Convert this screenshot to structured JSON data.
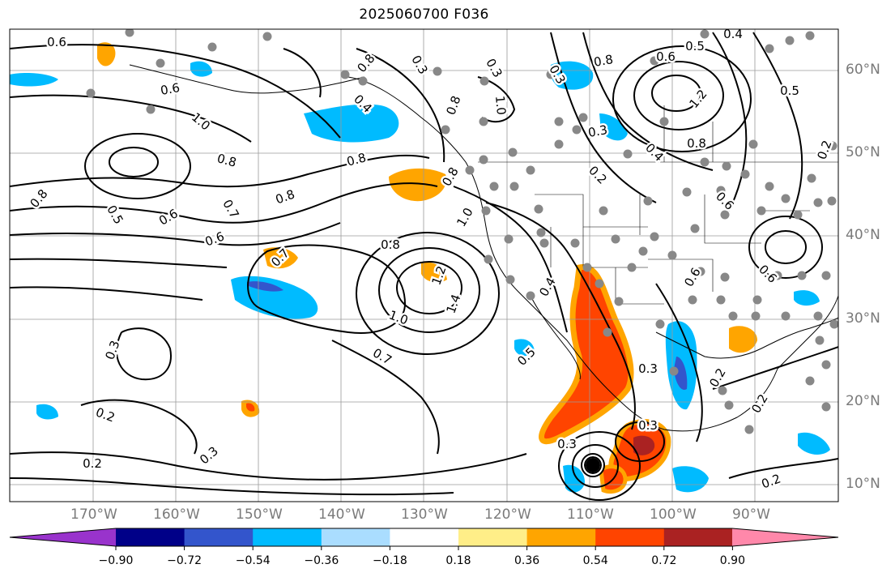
{
  "title": "2025060700 F036",
  "map": {
    "lat_labels": [
      "60°N",
      "50°N",
      "40°N",
      "30°N",
      "20°N",
      "10°N"
    ],
    "lon_labels": [
      "170°W",
      "160°W",
      "150°W",
      "140°W",
      "130°W",
      "120°W",
      "110°W",
      "100°W",
      "90°W"
    ],
    "contour_labels": [
      "0.6",
      "0.8",
      "0.6",
      "1.0",
      "0.8",
      "0.5",
      "0.6",
      "0.7",
      "0.8",
      "0.6",
      "0.7",
      "0.8",
      "0.8",
      "0.4",
      "0.3",
      "0.3",
      "0.8",
      "1.0",
      "0.8",
      "0.3",
      "0.8",
      "0.6",
      "0.5",
      "0.4",
      "0.5",
      "1.2",
      "0.3",
      "0.4",
      "0.2",
      "0.8",
      "0.2",
      "0.6",
      "1.0",
      "0.8",
      "1.2",
      "1.4",
      "1.0",
      "0.7",
      "0.5",
      "0.4",
      "0.3",
      "0.2",
      "0.2",
      "0.3",
      "0.2",
      "0.6",
      "0.6",
      "0.2",
      "0.2",
      "0.3",
      "0.3",
      "0.3"
    ]
  },
  "colorbar": {
    "ticks": [
      "−0.90",
      "−0.72",
      "−0.54",
      "−0.36",
      "−0.18",
      "0.18",
      "0.36",
      "0.54",
      "0.72",
      "0.90"
    ],
    "colors": [
      "#9933cc",
      "#000088",
      "#3355cc",
      "#00bbff",
      "#aaddff",
      "#ffffff",
      "#ffee88",
      "#ffa500",
      "#ff4400",
      "#aa2222",
      "#ff88aa"
    ]
  }
}
